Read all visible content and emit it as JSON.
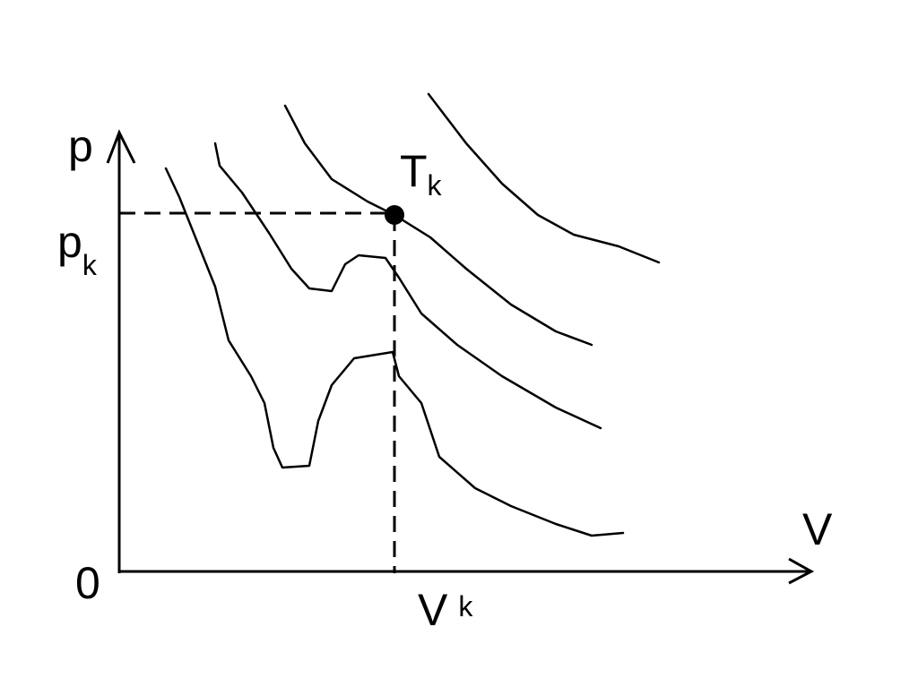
{
  "labels": {
    "y_axis": "p",
    "x_axis": "V",
    "origin": "0",
    "critical_pressure": {
      "base": "p",
      "sub": "k"
    },
    "critical_volume": {
      "base": "V",
      "sub": "k"
    },
    "critical_point": {
      "base": "T",
      "sub": "k"
    }
  }
}
